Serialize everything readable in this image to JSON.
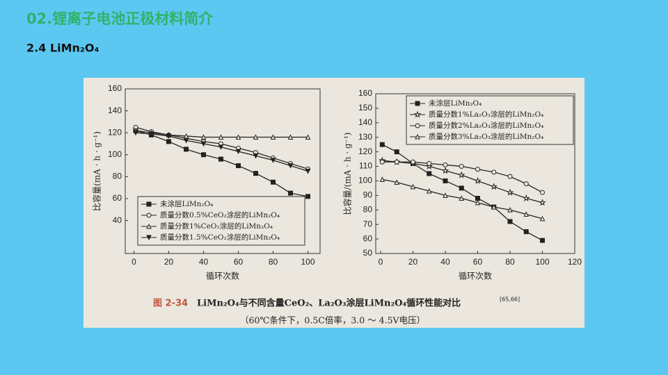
{
  "header": {
    "title": "02.锂离子电池正极材料简介",
    "subtitle": "2.4 LiMn₂O₄"
  },
  "caption": {
    "number": "图 2-34",
    "text": "LiMn₂O₄与不同含量CeO₂、La₂O₃涂层LiMn₂O₄循环性能对比",
    "ref": "[65,66]",
    "note": "（60℃条件下，0.5C倍率，3.0 ～ 4.5V电压）"
  },
  "chart_data": [
    {
      "type": "line",
      "x_label": "循环次数",
      "y_label": "比容量(mA · h · g⁻¹)",
      "x": [
        1,
        10,
        20,
        30,
        40,
        50,
        60,
        70,
        80,
        90,
        100
      ],
      "xlim": [
        -5,
        107
      ],
      "xticks": [
        0,
        20,
        40,
        60,
        80,
        100
      ],
      "ylim": [
        10,
        160
      ],
      "yticks": [
        40,
        60,
        80,
        100,
        120,
        140,
        160
      ],
      "legend": "lower left",
      "series": [
        {
          "name": "未涂层LiMn₂O₄",
          "color": "#222222",
          "marker": "square-filled",
          "values": [
            122,
            118,
            112,
            105,
            100,
            96,
            90,
            83,
            75,
            65,
            62
          ]
        },
        {
          "name": "质量分数0.5%CeO₂涂层的LiMn₂O₄",
          "color": "#222222",
          "marker": "circle-open",
          "values": [
            125,
            121,
            118,
            115,
            112,
            110,
            106,
            102,
            97,
            92,
            87
          ]
        },
        {
          "name": "质量分数1%CeO₂涂层的LiMn₂O₄",
          "color": "#222222",
          "marker": "triangle-open",
          "values": [
            122,
            120,
            118,
            117,
            116,
            116,
            116,
            116,
            116,
            116,
            116
          ]
        },
        {
          "name": "质量分数1.5%CeO₂涂层的LiMn₂O₄",
          "color": "#222222",
          "marker": "triangle-down-filled",
          "values": [
            120,
            119,
            117,
            113,
            110,
            107,
            103,
            99,
            95,
            90,
            85
          ]
        }
      ]
    },
    {
      "type": "line",
      "x_label": "循环次数",
      "y_label": "比容量/(mA · h · g⁻¹)",
      "x": [
        1,
        10,
        20,
        30,
        40,
        50,
        60,
        70,
        80,
        90,
        100
      ],
      "xlim": [
        -3,
        120
      ],
      "xticks": [
        0,
        20,
        40,
        60,
        80,
        100,
        120
      ],
      "ylim": [
        50,
        160
      ],
      "yticks": [
        50,
        60,
        70,
        80,
        90,
        100,
        110,
        120,
        130,
        140,
        150,
        160
      ],
      "legend": "upper right",
      "series": [
        {
          "name": "未涂层LiMn₂O₄",
          "color": "#222222",
          "marker": "square-filled",
          "values": [
            125,
            120,
            112,
            105,
            100,
            95,
            88,
            82,
            72,
            65,
            59
          ]
        },
        {
          "name": "质量分数1%La₂O₃涂层的LiMn₂O₄",
          "color": "#222222",
          "marker": "star-open",
          "values": [
            114,
            113,
            112,
            110,
            107,
            104,
            100,
            96,
            92,
            88,
            85
          ]
        },
        {
          "name": "质量分数2%La₂O₃涂层的LiMn₂O₄",
          "color": "#222222",
          "marker": "circle-open",
          "values": [
            113,
            113,
            113,
            112,
            111,
            110,
            108,
            106,
            103,
            98,
            92
          ]
        },
        {
          "name": "质量分数3%La₂O₃涂层的LiMn₂O₄",
          "color": "#222222",
          "marker": "triangle-open",
          "values": [
            101,
            99,
            96,
            93,
            90,
            88,
            85,
            82,
            80,
            77,
            74
          ]
        }
      ]
    }
  ]
}
